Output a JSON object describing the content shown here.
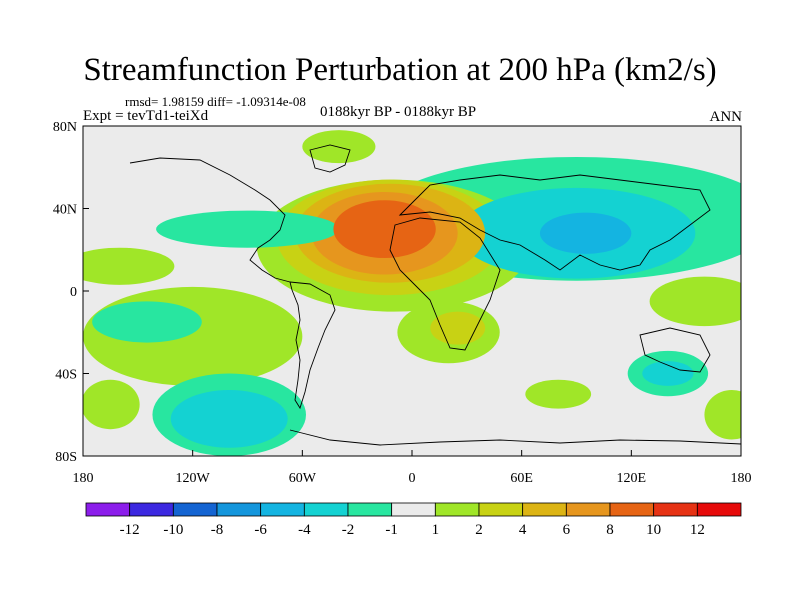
{
  "chart_data": {
    "type": "filled-contour-map",
    "title": "Streamfunction Perturbation at 200 hPa (km2/s)",
    "subtitle_left": "rmsd= 1.98159  diff= -1.09314e-08",
    "experiment": "Expt = tevTd1-teiXd",
    "period": "0188kyr BP - 0188kyr BP",
    "season": "ANN",
    "x_ticks": [
      "180",
      "120W",
      "60W",
      "0",
      "60E",
      "120E",
      "180"
    ],
    "x_tick_values": [
      -180,
      -120,
      -60,
      0,
      60,
      120,
      180
    ],
    "y_ticks": [
      "80N",
      "40N",
      "0",
      "40S",
      "80S"
    ],
    "y_tick_values": [
      80,
      40,
      0,
      -40,
      -80
    ],
    "xlim": [
      -180,
      180
    ],
    "ylim": [
      -80,
      80
    ],
    "colorbar": {
      "labels": [
        "-12",
        "-10",
        "-8",
        "-6",
        "-4",
        "-2",
        "-1",
        "1",
        "2",
        "4",
        "6",
        "8",
        "10",
        "12"
      ],
      "colors": [
        "#8c1eeb",
        "#3c28e0",
        "#1464d2",
        "#1496dc",
        "#14b4e1",
        "#14d2d2",
        "#28e6a0",
        "#ebebeb",
        "#a0e628",
        "#c8d214",
        "#dcb414",
        "#e6961e",
        "#e66414",
        "#e63214",
        "#e60a0a"
      ]
    },
    "regions": [
      {
        "lon": -15,
        "lat": 30,
        "rx": 28,
        "ry": 14,
        "level": "8 to 10",
        "color": "#e66414"
      },
      {
        "lon": -15,
        "lat": 28,
        "rx": 40,
        "ry": 20,
        "level": "6 to 8",
        "color": "#e6961e"
      },
      {
        "lon": -12,
        "lat": 28,
        "rx": 52,
        "ry": 24,
        "level": "4 to 6",
        "color": "#dcb414"
      },
      {
        "lon": -12,
        "lat": 26,
        "rx": 62,
        "ry": 28,
        "level": "2 to 4",
        "color": "#c8d214"
      },
      {
        "lon": -10,
        "lat": 22,
        "rx": 75,
        "ry": 32,
        "level": "1 to 2",
        "color": "#a0e628"
      },
      {
        "lon": 95,
        "lat": 28,
        "rx": 25,
        "ry": 10,
        "level": "-6 to -4",
        "color": "#14b4e1"
      },
      {
        "lon": 90,
        "lat": 28,
        "rx": 65,
        "ry": 22,
        "level": "-4 to -2",
        "color": "#14d2d2"
      },
      {
        "lon": 90,
        "lat": 35,
        "rx": 110,
        "ry": 30,
        "level": "-2 to -1",
        "color": "#28e6a0"
      },
      {
        "lon": -145,
        "lat": -15,
        "rx": 30,
        "ry": 10,
        "level": "-2 to -1",
        "color": "#28e6a0"
      },
      {
        "lon": -120,
        "lat": -22,
        "rx": 60,
        "ry": 24,
        "level": "1 to 2",
        "color": "#a0e628"
      },
      {
        "lon": -100,
        "lat": -60,
        "rx": 42,
        "ry": 20,
        "level": "-2 to -1",
        "color": "#28e6a0"
      },
      {
        "lon": -100,
        "lat": -62,
        "rx": 32,
        "ry": 14,
        "level": "-4 to -2",
        "color": "#14d2d2"
      },
      {
        "lon": 20,
        "lat": -20,
        "rx": 28,
        "ry": 15,
        "level": "1 to 2",
        "color": "#a0e628"
      },
      {
        "lon": 25,
        "lat": -18,
        "rx": 15,
        "ry": 8,
        "level": "2 to 4",
        "color": "#c8d214"
      },
      {
        "lon": 140,
        "lat": -40,
        "rx": 22,
        "ry": 11,
        "level": "-2 to -1",
        "color": "#28e6a0"
      },
      {
        "lon": 140,
        "lat": -40,
        "rx": 14,
        "ry": 6,
        "level": "-4 to -2",
        "color": "#14d2d2"
      },
      {
        "lon": -160,
        "lat": 12,
        "rx": 30,
        "ry": 9,
        "level": "1 to 2",
        "color": "#a0e628"
      },
      {
        "lon": -90,
        "lat": 30,
        "rx": 50,
        "ry": 9,
        "level": "-2 to -1",
        "color": "#28e6a0"
      },
      {
        "lon": -40,
        "lat": 70,
        "rx": 20,
        "ry": 8,
        "level": "1 to 2",
        "color": "#a0e628"
      },
      {
        "lon": 160,
        "lat": -5,
        "rx": 30,
        "ry": 12,
        "level": "1 to 2",
        "color": "#a0e628"
      },
      {
        "lon": 80,
        "lat": -50,
        "rx": 18,
        "ry": 7,
        "level": "1 to 2",
        "color": "#a0e628"
      },
      {
        "lon": -165,
        "lat": -55,
        "rx": 16,
        "ry": 12,
        "level": "1 to 2",
        "color": "#a0e628"
      },
      {
        "lon": 175,
        "lat": -60,
        "rx": 15,
        "ry": 12,
        "level": "1 to 2",
        "color": "#a0e628"
      }
    ]
  }
}
